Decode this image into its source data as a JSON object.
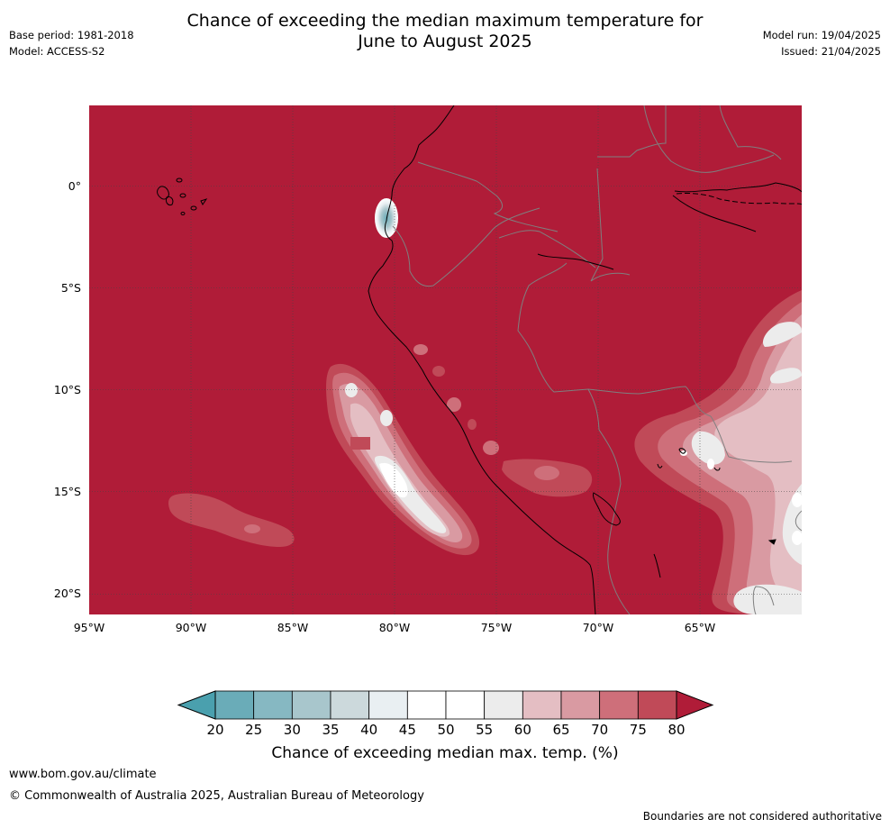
{
  "header": {
    "title_line1": "Chance of exceeding the median maximum temperature for",
    "title_line2": "June to August 2025",
    "base_period": "Base period: 1981-2018",
    "model": "Model: ACCESS-S2",
    "model_run": "Model run: 19/04/2025",
    "issued": "Issued: 21/04/2025"
  },
  "map": {
    "region": "South America (Pacific coast)",
    "lat_ticks": [
      "0°",
      "5°S",
      "10°S",
      "15°S",
      "20°S"
    ],
    "lon_ticks": [
      "95°W",
      "90°W",
      "85°W",
      "80°W",
      "75°W",
      "70°W",
      "65°W"
    ],
    "background_category": "above 80%",
    "colors": {
      "c80": "#b01c38",
      "c75": "#c04a58",
      "c70": "#ce6f7a",
      "c65": "#d99aa2",
      "c60": "#e4bec3",
      "c55": "#ececec",
      "c50": "#ffffff",
      "c45": "#ffffff",
      "c40": "#e9eff2",
      "c35": "#ccd9dc",
      "c30": "#a8c6cc",
      "c25": "#86b8c2",
      "c20": "#6aacb8",
      "below20": "#4aa0ae",
      "border": "#7f7f7f",
      "coast": "#000000",
      "grid": "#444444"
    }
  },
  "legend": {
    "ticks": [
      "20",
      "25",
      "30",
      "35",
      "40",
      "45",
      "50",
      "55",
      "60",
      "65",
      "70",
      "75",
      "80"
    ],
    "label": "Chance of exceeding median max. temp. (%)",
    "swatches": [
      "#6aacb8",
      "#86b8c2",
      "#a8c6cc",
      "#ccd9dc",
      "#e9eff2",
      "#ffffff",
      "#ffffff",
      "#ececec",
      "#e4bec3",
      "#d99aa2",
      "#ce6f7a",
      "#c04a58"
    ],
    "under_color": "#4aa0ae",
    "over_color": "#b01c38"
  },
  "footer": {
    "website": "www.bom.gov.au/climate",
    "copyright": "© Commonwealth of Australia 2025, Australian Bureau of Meteorology",
    "disclaimer": "Boundaries are not considered authoritative"
  }
}
